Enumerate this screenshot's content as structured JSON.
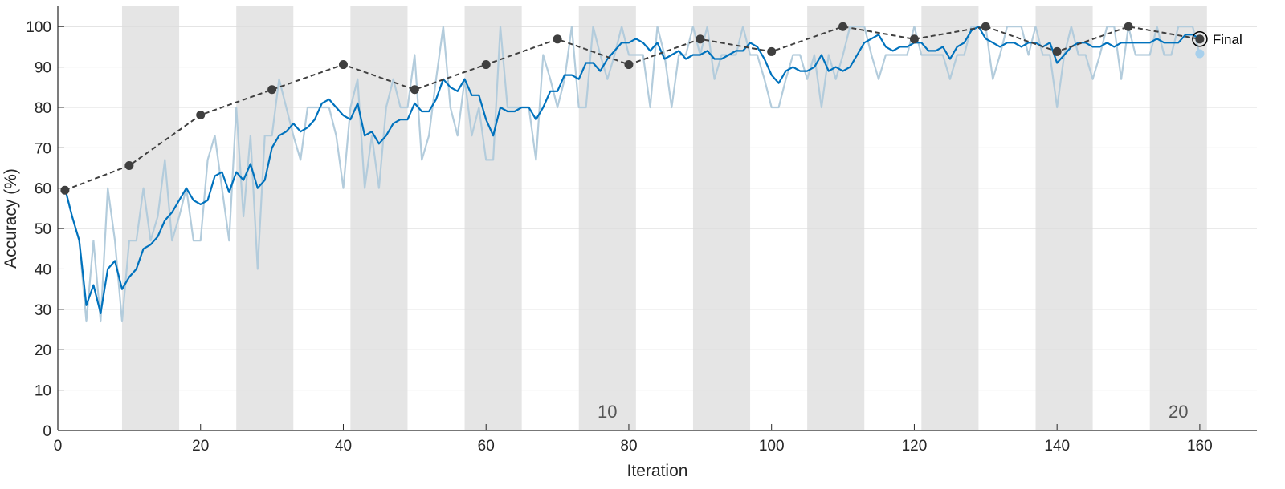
{
  "chart_data": {
    "type": "line",
    "xlabel": "Iteration",
    "ylabel": "Accuracy (%)",
    "xlim": [
      0,
      168
    ],
    "ylim": [
      0,
      105
    ],
    "x_ticks": [
      0,
      20,
      40,
      60,
      80,
      100,
      120,
      140,
      160
    ],
    "y_ticks": [
      0,
      10,
      20,
      30,
      40,
      50,
      60,
      70,
      80,
      90,
      100
    ],
    "grid": "horizontal",
    "epoch_shading": {
      "iterations_per_epoch": 8,
      "shaded_epochs": [
        2,
        4,
        6,
        8,
        10,
        12,
        14,
        16,
        18,
        20
      ],
      "epoch_labels": [
        {
          "text": "10",
          "epoch": 10
        },
        {
          "text": "20",
          "epoch": 20
        }
      ]
    },
    "colors": {
      "raw": "#b3ccdc",
      "smoothed": "#0072bd",
      "validation": "#3f3f3f",
      "final_marker": "#a8d0ec",
      "shade": "#e5e5e5",
      "grid": "#dcdcdc"
    },
    "series": [
      {
        "style": "raw",
        "x": [
          1,
          2,
          3,
          4,
          5,
          6,
          7,
          8,
          9,
          10,
          11,
          12,
          13,
          14,
          15,
          16,
          17,
          18,
          19,
          20,
          21,
          22,
          23,
          24,
          25,
          26,
          27,
          28,
          29,
          30,
          31,
          32,
          33,
          34,
          35,
          36,
          37,
          38,
          39,
          40,
          41,
          42,
          43,
          44,
          45,
          46,
          47,
          48,
          49,
          50,
          51,
          52,
          53,
          54,
          55,
          56,
          57,
          58,
          59,
          60,
          61,
          62,
          63,
          64,
          65,
          66,
          67,
          68,
          69,
          70,
          71,
          72,
          73,
          74,
          75,
          76,
          77,
          78,
          79,
          80,
          81,
          82,
          83,
          84,
          85,
          86,
          87,
          88,
          89,
          90,
          91,
          92,
          93,
          94,
          95,
          96,
          97,
          98,
          99,
          100,
          101,
          102,
          103,
          104,
          105,
          106,
          107,
          108,
          109,
          110,
          111,
          112,
          113,
          114,
          115,
          116,
          117,
          118,
          119,
          120,
          121,
          122,
          123,
          124,
          125,
          126,
          127,
          128,
          129,
          130,
          131,
          132,
          133,
          134,
          135,
          136,
          137,
          138,
          139,
          140,
          141,
          142,
          143,
          144,
          145,
          146,
          147,
          148,
          149,
          150,
          151,
          152,
          153,
          154,
          155,
          156,
          157,
          158,
          159,
          160
        ],
        "y": [
          60,
          53,
          47,
          27,
          47,
          27,
          60,
          47,
          27,
          47,
          47,
          60,
          47,
          53,
          67,
          47,
          53,
          60,
          47,
          47,
          67,
          73,
          60,
          47,
          80,
          53,
          73,
          40,
          73,
          73,
          87,
          80,
          73,
          67,
          80,
          80,
          80,
          80,
          73,
          60,
          80,
          87,
          60,
          73,
          60,
          80,
          87,
          80,
          80,
          93,
          67,
          73,
          87,
          100,
          80,
          73,
          87,
          73,
          80,
          67,
          67,
          100,
          80,
          80,
          80,
          80,
          67,
          93,
          87,
          80,
          87,
          100,
          80,
          80,
          100,
          93,
          87,
          93,
          100,
          93,
          93,
          93,
          80,
          100,
          93,
          80,
          93,
          93,
          100,
          93,
          100,
          87,
          93,
          93,
          93,
          100,
          93,
          93,
          87,
          80,
          80,
          87,
          93,
          93,
          87,
          93,
          80,
          93,
          87,
          93,
          100,
          100,
          100,
          93,
          87,
          93,
          93,
          93,
          93,
          100,
          93,
          93,
          93,
          93,
          87,
          93,
          93,
          100,
          100,
          100,
          87,
          93,
          100,
          100,
          100,
          93,
          100,
          93,
          93,
          80,
          93,
          100,
          93,
          93,
          87,
          93,
          100,
          100,
          87,
          100,
          93,
          93,
          93,
          100,
          93,
          93,
          100,
          100,
          100,
          93
        ]
      },
      {
        "style": "smoothed",
        "x": [
          1,
          2,
          3,
          4,
          5,
          6,
          7,
          8,
          9,
          10,
          11,
          12,
          13,
          14,
          15,
          16,
          17,
          18,
          19,
          20,
          21,
          22,
          23,
          24,
          25,
          26,
          27,
          28,
          29,
          30,
          31,
          32,
          33,
          34,
          35,
          36,
          37,
          38,
          39,
          40,
          41,
          42,
          43,
          44,
          45,
          46,
          47,
          48,
          49,
          50,
          51,
          52,
          53,
          54,
          55,
          56,
          57,
          58,
          59,
          60,
          61,
          62,
          63,
          64,
          65,
          66,
          67,
          68,
          69,
          70,
          71,
          72,
          73,
          74,
          75,
          76,
          77,
          78,
          79,
          80,
          81,
          82,
          83,
          84,
          85,
          86,
          87,
          88,
          89,
          90,
          91,
          92,
          93,
          94,
          95,
          96,
          97,
          98,
          99,
          100,
          101,
          102,
          103,
          104,
          105,
          106,
          107,
          108,
          109,
          110,
          111,
          112,
          113,
          114,
          115,
          116,
          117,
          118,
          119,
          120,
          121,
          122,
          123,
          124,
          125,
          126,
          127,
          128,
          129,
          130,
          131,
          132,
          133,
          134,
          135,
          136,
          137,
          138,
          139,
          140,
          141,
          142,
          143,
          144,
          145,
          146,
          147,
          148,
          149,
          150,
          151,
          152,
          153,
          154,
          155,
          156,
          157,
          158,
          159,
          160
        ],
        "y": [
          60,
          53,
          47,
          31,
          36,
          29,
          40,
          42,
          35,
          38,
          40,
          45,
          46,
          48,
          52,
          54,
          57,
          60,
          57,
          56,
          57,
          63,
          64,
          59,
          64,
          62,
          66,
          60,
          62,
          70,
          73,
          74,
          76,
          74,
          75,
          77,
          81,
          82,
          80,
          78,
          77,
          81,
          73,
          74,
          71,
          73,
          76,
          77,
          77,
          81,
          79,
          79,
          82,
          87,
          85,
          84,
          87,
          83,
          83,
          77,
          73,
          80,
          79,
          79,
          80,
          80,
          77,
          80,
          84,
          84,
          88,
          88,
          87,
          91,
          91,
          89,
          92,
          94,
          96,
          96,
          97,
          96,
          94,
          96,
          92,
          93,
          94,
          92,
          93,
          93,
          94,
          92,
          92,
          93,
          94,
          94,
          96,
          95,
          92,
          88,
          86,
          89,
          90,
          89,
          89,
          90,
          93,
          89,
          90,
          89,
          90,
          93,
          96,
          97,
          98,
          95,
          94,
          95,
          95,
          96,
          96,
          94,
          94,
          95,
          92,
          95,
          96,
          99,
          100,
          97,
          96,
          95,
          96,
          96,
          95,
          96,
          96,
          95,
          96,
          91,
          93,
          95,
          96,
          96,
          95,
          95,
          96,
          95,
          96,
          96,
          96,
          96,
          96,
          97,
          96,
          96,
          96,
          98,
          98,
          97
        ]
      },
      {
        "style": "validation",
        "x": [
          1,
          10,
          20,
          30,
          40,
          50,
          60,
          70,
          80,
          90,
          100,
          110,
          120,
          130,
          140,
          150,
          160
        ],
        "y": [
          59.5,
          65.6,
          78.1,
          84.4,
          90.6,
          84.4,
          90.6,
          96.9,
          90.6,
          96.9,
          93.8,
          100,
          96.9,
          100,
          93.8,
          100,
          96.9
        ]
      }
    ],
    "final": {
      "label": "Final",
      "x": 160,
      "validation": 96.9,
      "raw": 93.3
    }
  }
}
